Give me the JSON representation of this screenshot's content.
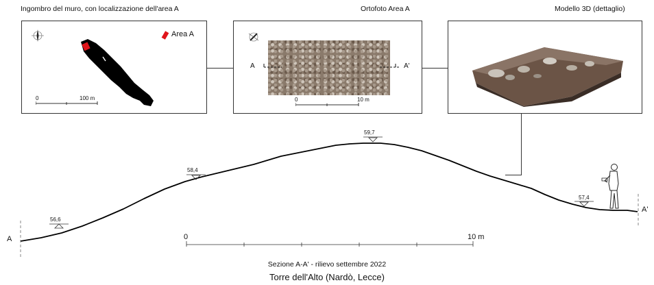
{
  "panels": {
    "map": {
      "title": "Ingombro del muro, con localizzazione dell'area A",
      "legend_label": "Area A",
      "scale_start": "0",
      "scale_end": "100 m"
    },
    "ortho": {
      "title": "Ortofoto Area A",
      "left_label": "A",
      "right_label": "A'",
      "scale_start": "0",
      "scale_end": "10 m"
    },
    "model": {
      "title": "Modello 3D (dettaglio)"
    }
  },
  "section": {
    "left_label": "A",
    "right_label": "A'",
    "elevations": [
      "56,6",
      "58,4",
      "59,7",
      "57,4"
    ],
    "scale_start": "0",
    "scale_end": "10 m"
  },
  "captions": {
    "line1": "Sezione A-A' - rilievo settembre 2022",
    "line2": "Torre dell'Alto (Nardò, Lecce)"
  },
  "colors": {
    "area_marker": "#e0151b",
    "wall": "#000000"
  }
}
